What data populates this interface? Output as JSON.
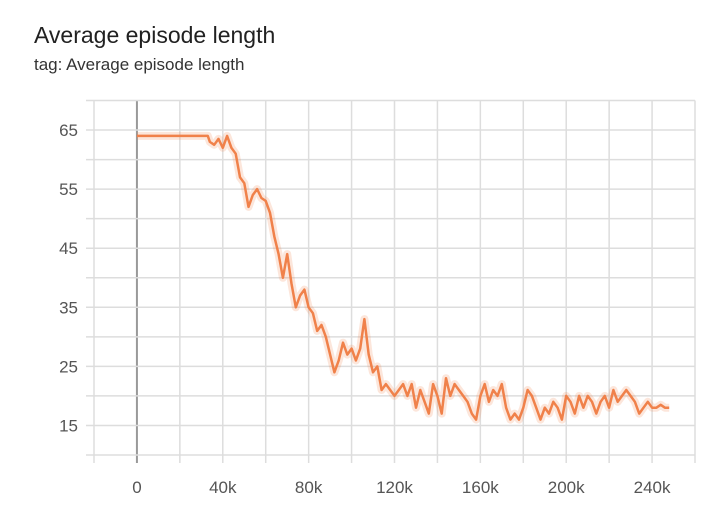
{
  "chart_data": {
    "type": "line",
    "title": "Average episode length",
    "subtitle": "tag: Average episode length",
    "xlabel": "",
    "ylabel": "",
    "xlim": [
      -20000,
      260000
    ],
    "ylim": [
      10,
      70
    ],
    "grid": true,
    "x_ticks": [
      0,
      40000,
      80000,
      120000,
      160000,
      200000,
      240000
    ],
    "x_tick_labels": [
      "0",
      "40k",
      "80k",
      "120k",
      "160k",
      "200k",
      "240k"
    ],
    "y_ticks": [
      15,
      25,
      35,
      45,
      55,
      65
    ],
    "y_tick_labels": [
      "15",
      "25",
      "35",
      "45",
      "55",
      "65"
    ],
    "color": "#f0814a",
    "series": [
      {
        "x": [
          0,
          10000,
          20000,
          33000,
          34000,
          36000,
          38000,
          40000,
          42000,
          44000,
          46000,
          48000,
          50000,
          52000,
          54000,
          56000,
          58000,
          60000,
          62000,
          64000,
          66000,
          68000,
          70000,
          72000,
          74000,
          76000,
          78000,
          80000,
          82000,
          84000,
          86000,
          88000,
          90000,
          92000,
          94000,
          96000,
          98000,
          100000,
          102000,
          104000,
          106000,
          108000,
          110000,
          112000,
          114000,
          116000,
          118000,
          120000,
          122000,
          124000,
          126000,
          128000,
          130000,
          132000,
          134000,
          136000,
          138000,
          140000,
          142000,
          144000,
          146000,
          148000,
          150000,
          152000,
          154000,
          156000,
          158000,
          160000,
          162000,
          164000,
          166000,
          168000,
          170000,
          172000,
          174000,
          176000,
          178000,
          180000,
          182000,
          184000,
          186000,
          188000,
          190000,
          192000,
          194000,
          196000,
          198000,
          200000,
          202000,
          204000,
          206000,
          208000,
          210000,
          212000,
          214000,
          216000,
          218000,
          220000,
          222000,
          224000,
          226000,
          228000,
          230000,
          232000,
          234000,
          236000,
          238000,
          240000,
          242000,
          244000,
          246000,
          248000
        ],
        "y": [
          64,
          64,
          64,
          64,
          63,
          62.5,
          63.5,
          62,
          64,
          62,
          61,
          57,
          56,
          52,
          54,
          55,
          53.5,
          53,
          51,
          47,
          44,
          40,
          44,
          39,
          35,
          37,
          38,
          35,
          34,
          31,
          32,
          30,
          27,
          24,
          26,
          29,
          27,
          28,
          26,
          28,
          33,
          27,
          24,
          25,
          21,
          22,
          21,
          20,
          21,
          22,
          20,
          22,
          18,
          21,
          19,
          17,
          22,
          20,
          17,
          23,
          20,
          22,
          21,
          20,
          19,
          17,
          16,
          20,
          22,
          19,
          21,
          20,
          22,
          18,
          16,
          17,
          16,
          18,
          21,
          20,
          18,
          16,
          18,
          17,
          19,
          18,
          16,
          20,
          19,
          17,
          20,
          18,
          20,
          19,
          17,
          19,
          20,
          18,
          21,
          19,
          20,
          21,
          20,
          19,
          17,
          18,
          19,
          18,
          18,
          18.5,
          18,
          18
        ]
      }
    ]
  }
}
